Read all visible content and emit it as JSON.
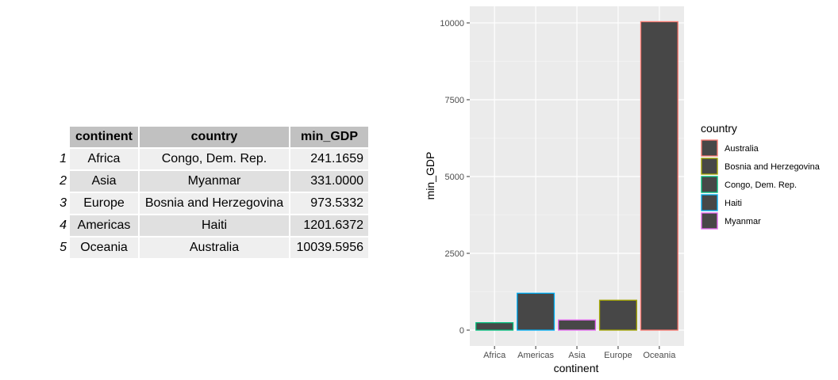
{
  "table": {
    "headers": [
      "continent",
      "country",
      "min_GDP"
    ],
    "rows": [
      {
        "index": "1",
        "continent": "Africa",
        "country": "Congo, Dem. Rep.",
        "min_GDP": "241.1659"
      },
      {
        "index": "2",
        "continent": "Asia",
        "country": "Myanmar",
        "min_GDP": "331.0000"
      },
      {
        "index": "3",
        "continent": "Europe",
        "country": "Bosnia and Herzegovina",
        "min_GDP": "973.5332"
      },
      {
        "index": "4",
        "continent": "Americas",
        "country": "Haiti",
        "min_GDP": "1201.6372"
      },
      {
        "index": "5",
        "continent": "Oceania",
        "country": "Australia",
        "min_GDP": "10039.5956"
      }
    ]
  },
  "chart_data": {
    "type": "bar",
    "categories": [
      "Africa",
      "Americas",
      "Asia",
      "Europe",
      "Oceania"
    ],
    "values": [
      241.1659,
      1201.6372,
      331.0,
      973.5332,
      10039.5956
    ],
    "bar_country": [
      "Congo, Dem. Rep.",
      "Haiti",
      "Myanmar",
      "Bosnia and Herzegovina",
      "Australia"
    ],
    "xlabel": "continent",
    "ylabel": "min_GDP",
    "ylim": [
      0,
      10540
    ],
    "yticks": [
      0,
      2500,
      5000,
      7500,
      10000
    ],
    "ytick_labels": [
      "0",
      "2500",
      "5000",
      "7500",
      "10000"
    ],
    "grid": true,
    "bar_fill": "#474747",
    "panel_background": "#ebebeb",
    "legend": {
      "title": "country",
      "placement": "right",
      "entries": [
        {
          "label": "Australia",
          "color": "#f8766d"
        },
        {
          "label": "Bosnia and Herzegovina",
          "color": "#a3a500"
        },
        {
          "label": "Congo, Dem. Rep.",
          "color": "#00bf7d"
        },
        {
          "label": "Haiti",
          "color": "#00b0f6"
        },
        {
          "label": "Myanmar",
          "color": "#e76bf3"
        }
      ]
    }
  }
}
